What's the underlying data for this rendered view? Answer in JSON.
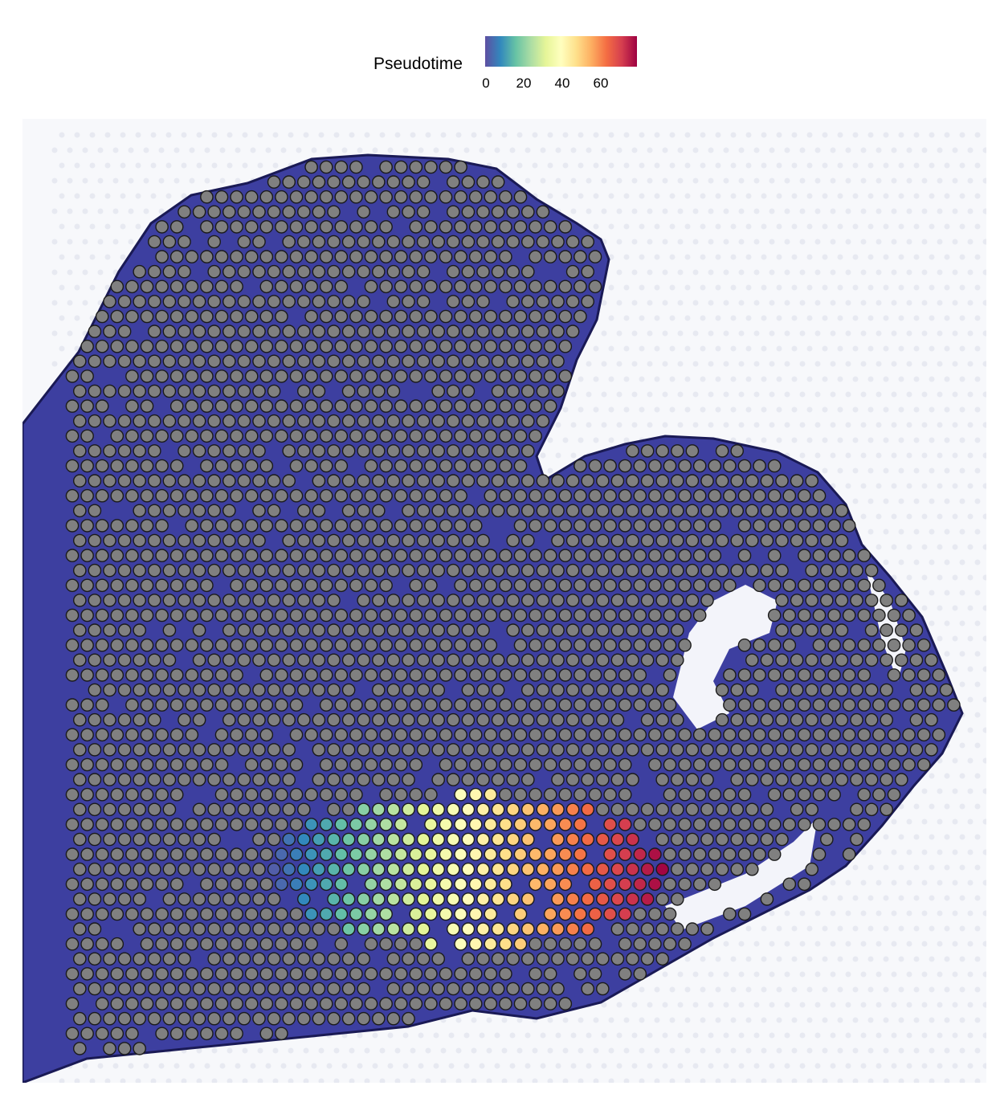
{
  "legend": {
    "title": "Pseudotime",
    "ticks": [
      {
        "label": "0",
        "value": 0
      },
      {
        "label": "20",
        "value": 20
      },
      {
        "label": "40",
        "value": 40
      },
      {
        "label": "60",
        "value": 60
      }
    ],
    "range": [
      0,
      78
    ],
    "colorscale": [
      "#5e4fa2",
      "#3288bd",
      "#66c2a5",
      "#abdda4",
      "#e6f598",
      "#ffffbf",
      "#fee08b",
      "#fdae61",
      "#f46d43",
      "#d53e4f",
      "#9e0142"
    ]
  },
  "image": {
    "background_tissue_color": "#3b3c9e",
    "spot_na_color": "#808080"
  }
}
